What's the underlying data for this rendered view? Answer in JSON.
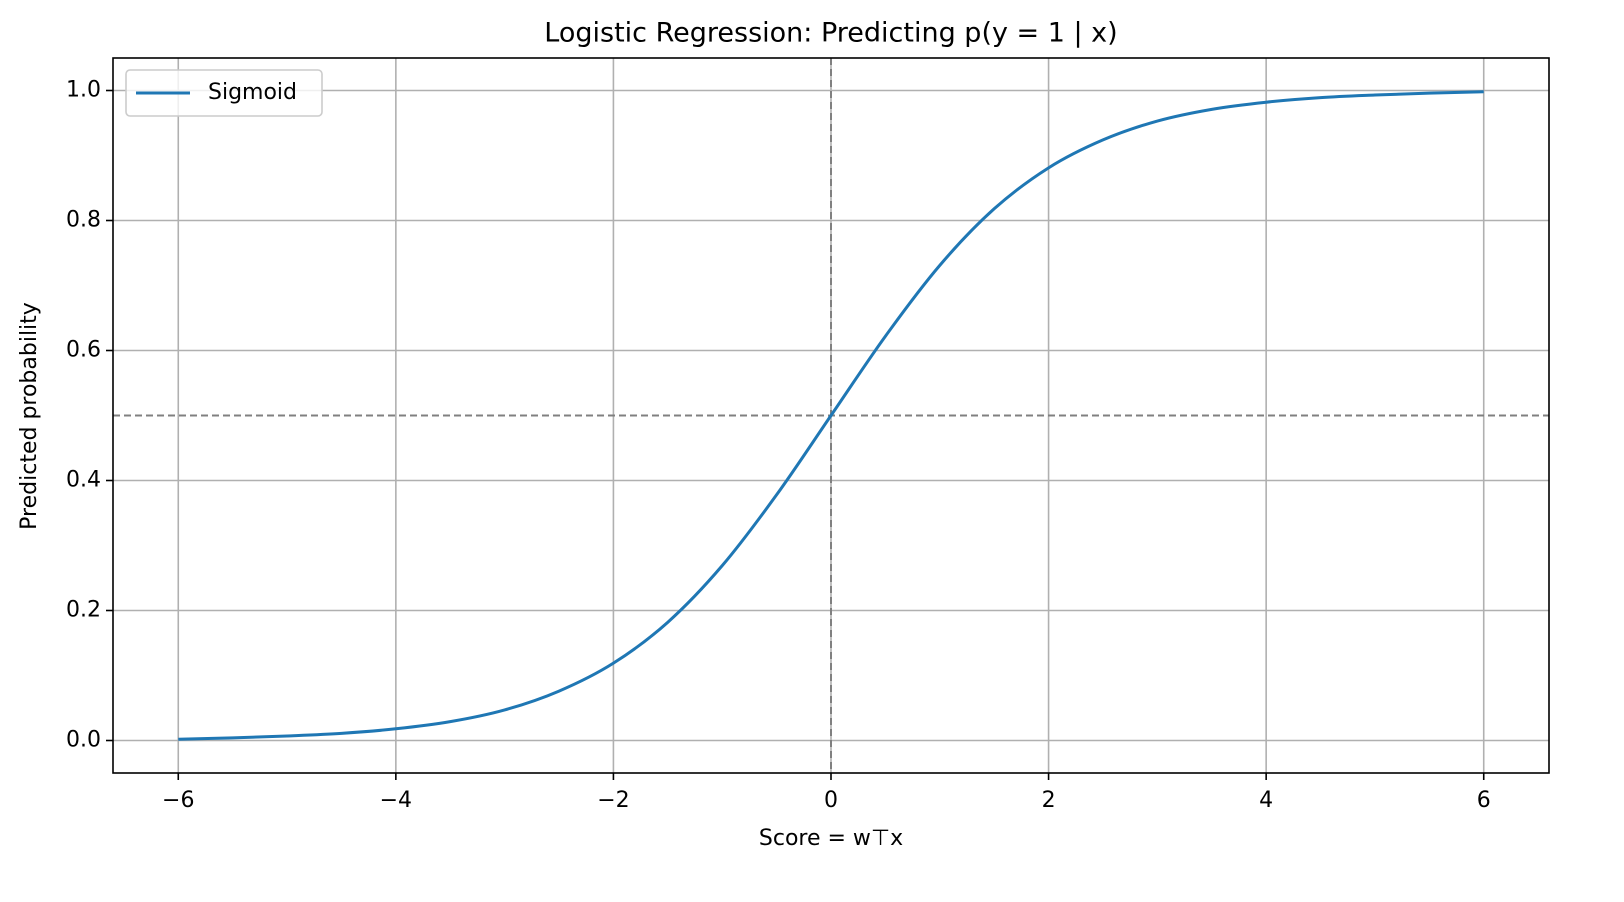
{
  "chart_data": {
    "type": "line",
    "title": "Logistic Regression: Predicting p(y = 1 | x)",
    "xlabel": "Score = w⊤x",
    "ylabel": "Predicted probability",
    "x": [
      -6,
      -5.5,
      -5,
      -4.5,
      -4,
      -3.5,
      -3,
      -2.5,
      -2,
      -1.5,
      -1,
      -0.5,
      0,
      0.5,
      1,
      1.5,
      2,
      2.5,
      3,
      3.5,
      4,
      4.5,
      5,
      5.5,
      6
    ],
    "series": [
      {
        "name": "Sigmoid",
        "color": "#1f77b4",
        "values": [
          0.002,
          0.004,
          0.007,
          0.011,
          0.018,
          0.029,
          0.047,
          0.076,
          0.119,
          0.182,
          0.269,
          0.378,
          0.5,
          0.622,
          0.731,
          0.818,
          0.881,
          0.924,
          0.953,
          0.971,
          0.982,
          0.989,
          0.993,
          0.996,
          0.998
        ]
      }
    ],
    "reference_lines": {
      "x": 0,
      "y": 0.5,
      "color": "#808080"
    },
    "xlim": [
      -6.6,
      6.6
    ],
    "ylim": [
      -0.05,
      1.05
    ],
    "xticks": [
      {
        "value": -6,
        "label": "−6"
      },
      {
        "value": -4,
        "label": "−4"
      },
      {
        "value": -2,
        "label": "−2"
      },
      0,
      2,
      4,
      6
    ],
    "yticks": [
      {
        "value": 0,
        "label": "0.0"
      },
      0.2,
      0.4,
      0.6,
      0.8,
      {
        "value": 1,
        "label": "1.0"
      }
    ],
    "grid": true,
    "legend": "upper left"
  }
}
